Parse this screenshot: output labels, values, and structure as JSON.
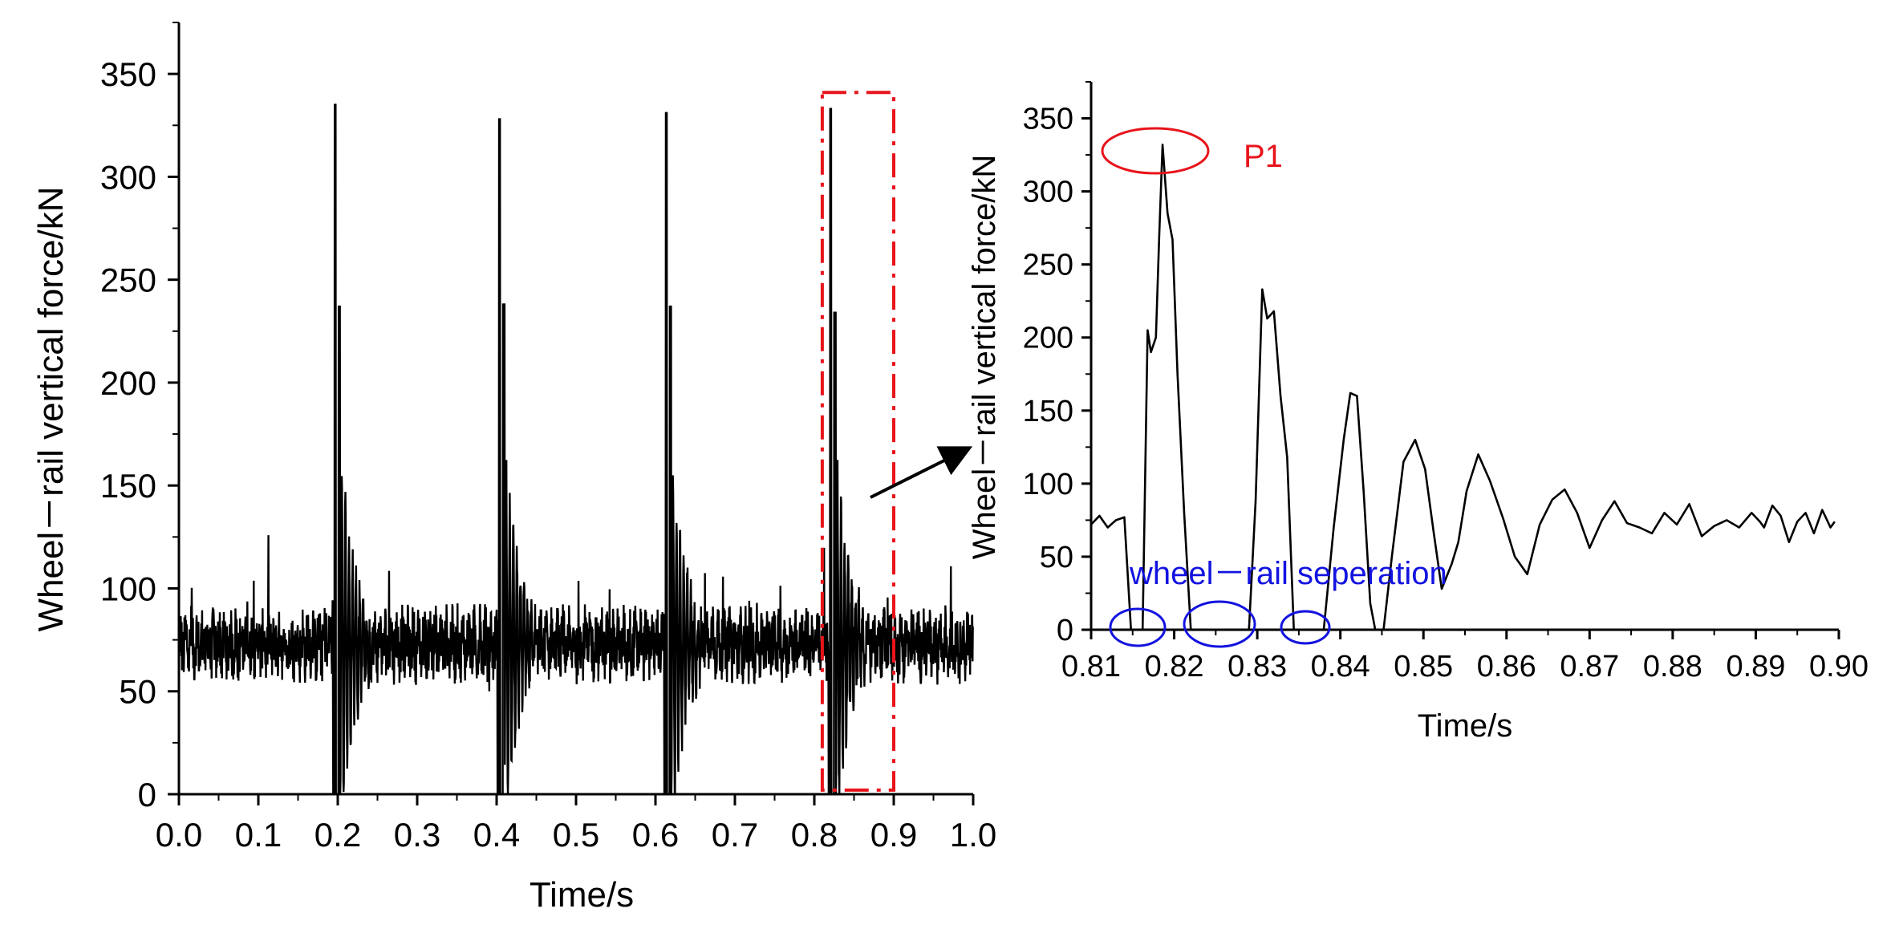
{
  "chart_data": [
    {
      "type": "line",
      "xlabel": "Time/s",
      "ylabel": "Wheel－rail vertical force/kN",
      "xlim": [
        0.0,
        1.0
      ],
      "ylim": [
        0,
        375
      ],
      "xticks": [
        "0.0",
        "0.1",
        "0.2",
        "0.3",
        "0.4",
        "0.5",
        "0.6",
        "0.7",
        "0.8",
        "0.9",
        "1.0"
      ],
      "yticks": [
        "0",
        "50",
        "100",
        "150",
        "200",
        "250",
        "300",
        "350"
      ],
      "baseline": 73,
      "impacts": [
        {
          "t": 0.195,
          "peak": 335,
          "second": 237
        },
        {
          "t": 0.402,
          "peak": 328,
          "second": 238
        },
        {
          "t": 0.612,
          "peak": 331,
          "second": 237
        },
        {
          "t": 0.819,
          "peak": 333,
          "second": 234
        }
      ],
      "highlight_box": {
        "x": [
          0.81,
          0.9
        ],
        "y": [
          2,
          341
        ],
        "color": "#e8141b"
      },
      "line_color": "#000000"
    },
    {
      "type": "line",
      "xlabel": "Time/s",
      "ylabel": "Wheel－rail vertical force/kN",
      "xlim": [
        0.81,
        0.9
      ],
      "ylim": [
        0,
        375
      ],
      "xticks": [
        "0.81",
        "0.82",
        "0.83",
        "0.84",
        "0.85",
        "0.86",
        "0.87",
        "0.88",
        "0.89",
        "0.90"
      ],
      "yticks": [
        "0",
        "50",
        "100",
        "150",
        "200",
        "250",
        "300",
        "350"
      ],
      "x": [
        0.81,
        0.811,
        0.812,
        0.813,
        0.814,
        0.8148,
        0.815,
        0.8162,
        0.8168,
        0.8172,
        0.8178,
        0.8182,
        0.8186,
        0.8192,
        0.8198,
        0.8204,
        0.8212,
        0.822,
        0.8228,
        0.8236,
        0.8244,
        0.826,
        0.829,
        0.8298,
        0.8306,
        0.8312,
        0.832,
        0.8328,
        0.8336,
        0.8344,
        0.835,
        0.8356,
        0.836,
        0.8372,
        0.838,
        0.8392,
        0.8404,
        0.8412,
        0.842,
        0.8428,
        0.8436,
        0.8442,
        0.8452,
        0.8462,
        0.8476,
        0.849,
        0.8502,
        0.8512,
        0.8522,
        0.8534,
        0.8542,
        0.8552,
        0.8566,
        0.858,
        0.8596,
        0.861,
        0.8625,
        0.864,
        0.8655,
        0.867,
        0.8685,
        0.87,
        0.8715,
        0.873,
        0.8745,
        0.876,
        0.8775,
        0.879,
        0.8805,
        0.882,
        0.8835,
        0.885,
        0.8865,
        0.888,
        0.8895,
        0.8905,
        0.891,
        0.892,
        0.893,
        0.894,
        0.895,
        0.896,
        0.897,
        0.898,
        0.899,
        0.8995
      ],
      "y": [
        72,
        78,
        70,
        75,
        77,
        0,
        0,
        0,
        205,
        190,
        200,
        270,
        332,
        285,
        267,
        175,
        80,
        0,
        0,
        0,
        0,
        0,
        0,
        88,
        233,
        213,
        218,
        160,
        118,
        0,
        0,
        0,
        0,
        0,
        0,
        70,
        130,
        162,
        160,
        95,
        18,
        0,
        0,
        50,
        115,
        130,
        110,
        68,
        28,
        45,
        60,
        95,
        120,
        102,
        76,
        50,
        38,
        72,
        89,
        96,
        80,
        56,
        75,
        88,
        73,
        70,
        66,
        80,
        72,
        86,
        64,
        71,
        75,
        70,
        80,
        74,
        70,
        85,
        78,
        60,
        74,
        80,
        66,
        82,
        70,
        74
      ],
      "line_color": "#000000",
      "annotations": [
        {
          "label": "P1",
          "text": "P1",
          "color": "#e8141b"
        },
        {
          "label": "wheel－rail seperation",
          "text": "wheel－rail seperation",
          "color": "#1313e0"
        }
      ]
    }
  ]
}
